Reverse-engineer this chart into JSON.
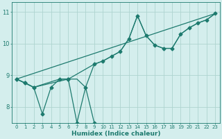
{
  "title": "",
  "xlabel": "Humidex (Indice chaleur)",
  "ylabel": "",
  "bg_color": "#d4eeed",
  "grid_color": "#aed4d0",
  "line_color": "#1d7a6e",
  "xlim": [
    -0.5,
    23.5
  ],
  "ylim": [
    7.5,
    11.3
  ],
  "yticks": [
    8,
    9,
    10,
    11
  ],
  "ytick_labels": [
    "8",
    "9",
    "10",
    "11"
  ],
  "xticks": [
    0,
    1,
    2,
    3,
    4,
    5,
    6,
    7,
    8,
    9,
    10,
    11,
    12,
    13,
    14,
    15,
    16,
    17,
    18,
    19,
    20,
    21,
    22,
    23
  ],
  "lines": [
    {
      "x": [
        0,
        23
      ],
      "y": [
        8.88,
        10.95
      ],
      "has_markers": false
    },
    {
      "x": [
        0,
        1,
        2,
        6,
        9,
        10,
        11,
        12,
        13,
        14,
        15,
        16,
        17,
        18,
        19,
        20,
        21,
        22,
        23
      ],
      "y": [
        8.88,
        8.76,
        8.62,
        8.88,
        9.35,
        9.45,
        9.6,
        9.75,
        10.15,
        10.88,
        10.25,
        9.95,
        9.85,
        9.85,
        10.3,
        10.5,
        10.65,
        10.75,
        10.95
      ],
      "has_markers": true
    },
    {
      "x": [
        0,
        1,
        2,
        3,
        4,
        5,
        6,
        7,
        8,
        9
      ],
      "y": [
        8.88,
        8.76,
        8.62,
        7.78,
        8.62,
        8.88,
        8.88,
        7.5,
        8.62,
        7.5
      ],
      "has_markers": true
    },
    {
      "x": [
        0,
        2,
        5,
        6,
        7,
        8,
        9,
        10,
        11,
        12,
        13,
        14,
        15,
        16,
        17,
        18,
        19,
        20,
        21,
        22,
        23
      ],
      "y": [
        8.88,
        8.62,
        8.88,
        8.88,
        8.88,
        8.62,
        9.35,
        9.45,
        9.6,
        9.75,
        10.15,
        10.88,
        10.25,
        9.95,
        9.85,
        9.85,
        10.3,
        10.5,
        10.65,
        10.75,
        10.95
      ],
      "has_markers": false
    }
  ],
  "marker": "D",
  "marker_size": 2.5,
  "line_width": 0.9
}
